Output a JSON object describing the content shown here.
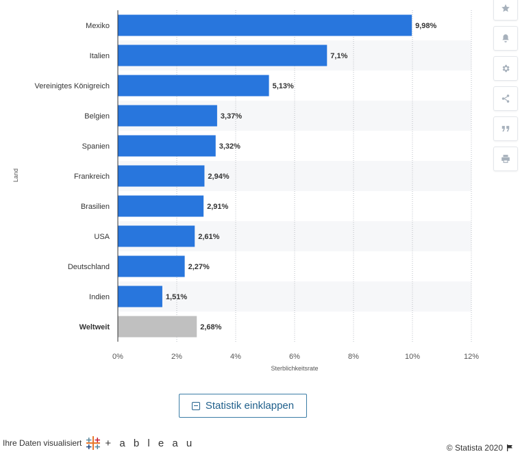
{
  "chart_data": {
    "type": "bar",
    "orientation": "horizontal",
    "categories": [
      "Mexiko",
      "Italien",
      "Vereinigtes Königreich",
      "Belgien",
      "Spanien",
      "Frankreich",
      "Brasilien",
      "USA",
      "Deutschland",
      "Indien",
      "Weltweit"
    ],
    "values": [
      9.98,
      7.1,
      5.13,
      3.37,
      3.32,
      2.94,
      2.91,
      2.61,
      2.27,
      1.51,
      2.68
    ],
    "value_labels": [
      "9,98%",
      "7,1%",
      "5,13%",
      "3,37%",
      "3,32%",
      "2,94%",
      "2,91%",
      "2,61%",
      "2,27%",
      "1,51%",
      "2,68%"
    ],
    "highlight_category": "Weltweit",
    "xlabel": "Sterblichkeitsrate",
    "ylabel": "Land",
    "xlim": [
      0,
      12
    ],
    "xticks": [
      0,
      2,
      4,
      6,
      8,
      10,
      12
    ],
    "xtick_labels": [
      "0%",
      "2%",
      "4%",
      "6%",
      "8%",
      "10%",
      "12%"
    ],
    "grid": true,
    "bar_color": "#2876dd",
    "highlight_color": "#c0c0c0",
    "stripe_color": "#f6f7f9"
  },
  "toolbar": {
    "icons": [
      "star-icon",
      "bell-icon",
      "gear-icon",
      "share-icon",
      "quote-icon",
      "print-icon"
    ]
  },
  "collapse_button": {
    "label": "Statistik einklappen"
  },
  "footer": {
    "visualized_text": "Ihre Daten visualisiert",
    "tableau_text": "+ a b l e a u",
    "copyright": "© Statista 2020"
  }
}
